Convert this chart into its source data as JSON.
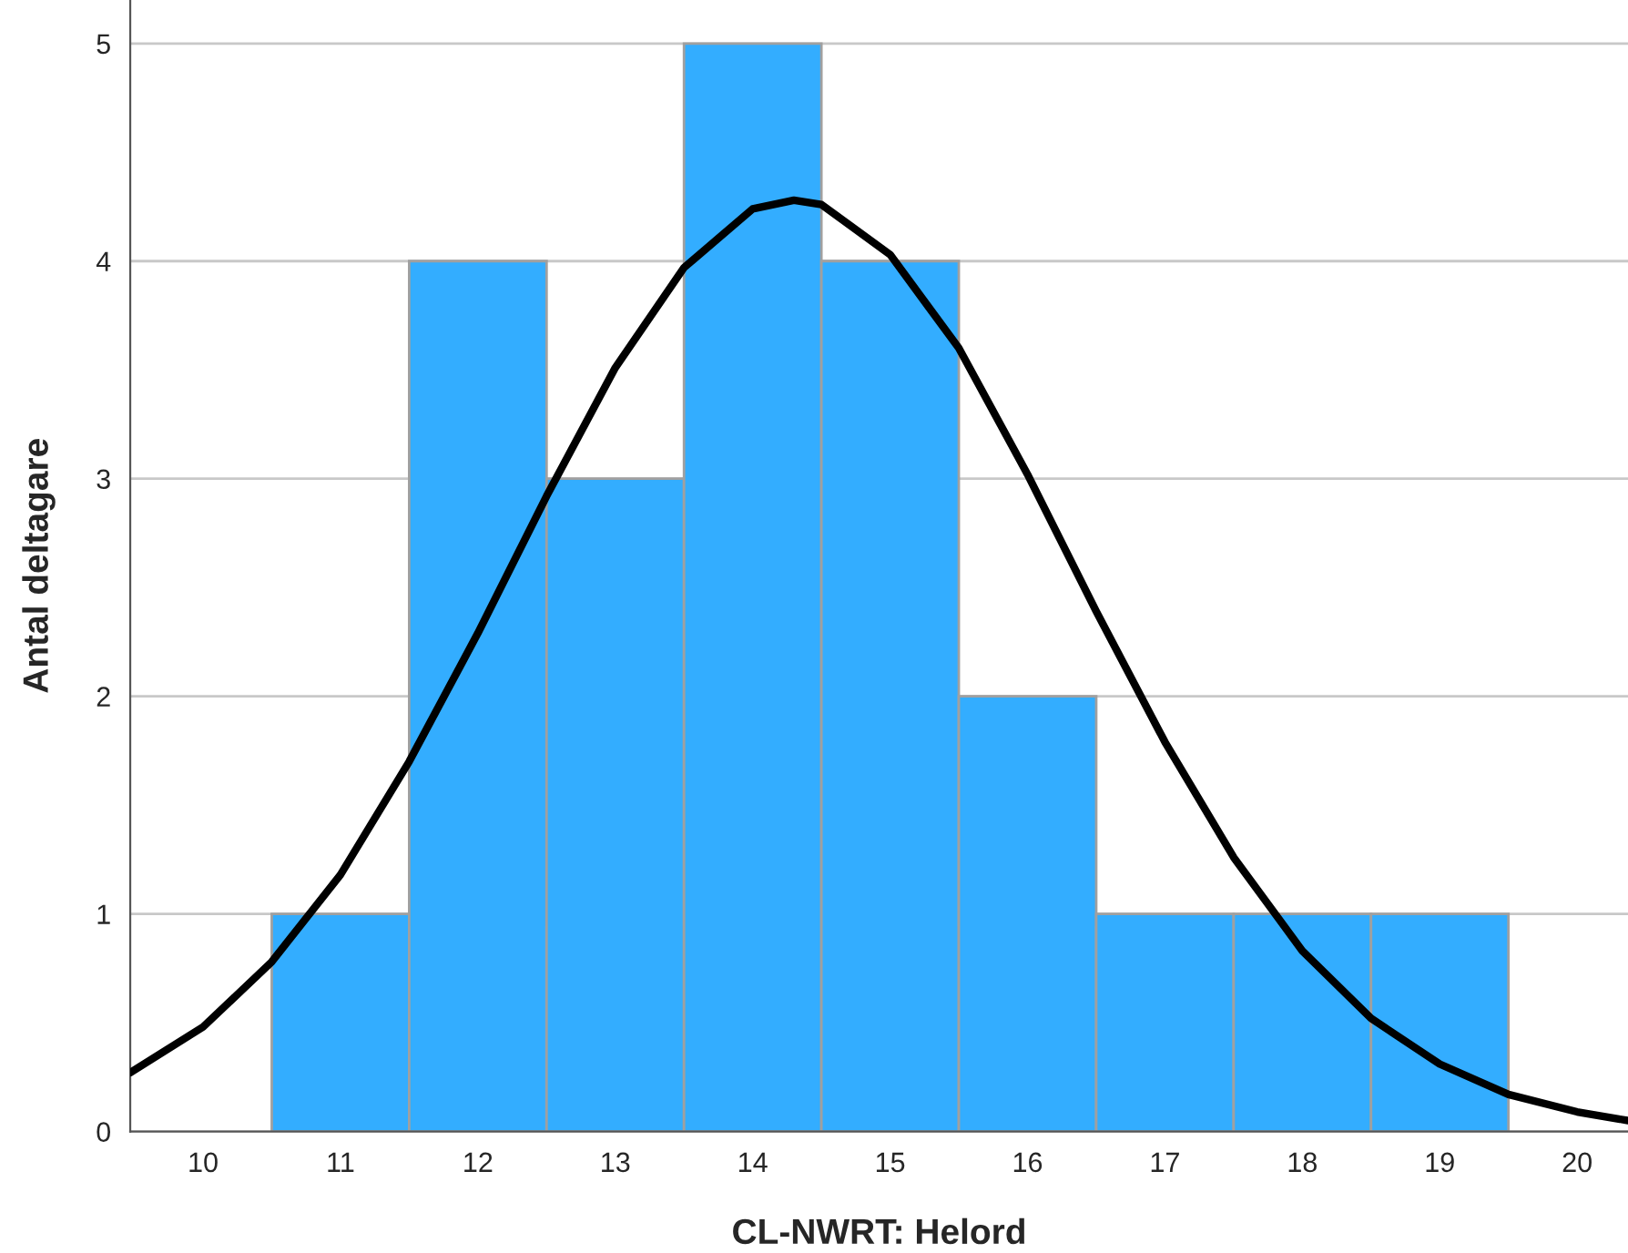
{
  "chart_data": {
    "type": "histogram",
    "xlabel": "CL-NWRT: Helord",
    "ylabel": "Antal deltagare",
    "bins": [
      10.5,
      11.5,
      12.5,
      13.5,
      14.5,
      15.5,
      16.5,
      17.5,
      18.5,
      19.5
    ],
    "values": [
      1,
      4,
      3,
      5,
      4,
      2,
      1,
      1,
      1
    ],
    "color": "#33adff",
    "series": [
      {
        "type": "line",
        "color": "#000000",
        "x": [
          9.47,
          10,
          10.5,
          11,
          11.5,
          12,
          12.5,
          13,
          13.5,
          14,
          14.3,
          14.5,
          15,
          15.5,
          16,
          16.5,
          17,
          17.5,
          18,
          18.5,
          19,
          19.5,
          20,
          20.37
        ],
        "values": [
          0.27,
          0.48,
          0.78,
          1.18,
          1.7,
          2.29,
          2.92,
          3.51,
          3.97,
          4.24,
          4.28,
          4.26,
          4.03,
          3.6,
          3.02,
          2.39,
          1.79,
          1.26,
          0.83,
          0.52,
          0.31,
          0.17,
          0.09,
          0.05
        ]
      }
    ],
    "xlim": [
      9.47,
      20.37
    ],
    "xticks": [
      10,
      11,
      12,
      13,
      14,
      15,
      16,
      17,
      18,
      19,
      20
    ],
    "ylim": [
      0,
      5.2
    ],
    "yticks": [
      0,
      1,
      2,
      3,
      4,
      5
    ],
    "grid": "y",
    "legend": false,
    "marker": "none",
    "line_style": "solid"
  }
}
